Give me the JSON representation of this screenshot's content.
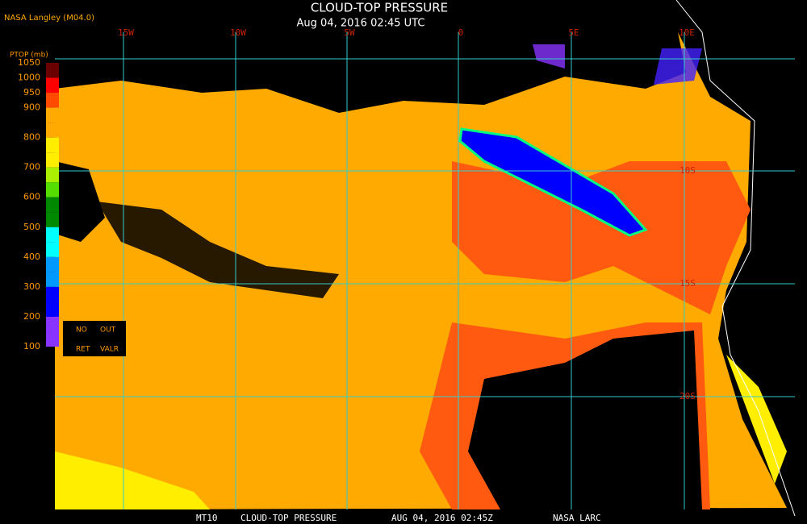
{
  "header": {
    "title": "CLOUD-TOP PRESSURE",
    "subtitle": "Aug 04, 2016 02:45 UTC",
    "source": "NASA Langley (M04.0)"
  },
  "colorbar": {
    "label": "PTOP (mb)",
    "ticks": [
      1050,
      1000,
      950,
      900,
      850,
      800,
      750,
      700,
      650,
      600,
      550,
      500,
      450,
      400,
      350,
      300,
      250,
      200,
      150,
      100
    ],
    "tick_labels_shown": [
      1050,
      1000,
      950,
      900,
      800,
      700,
      600,
      500,
      400,
      300,
      200,
      100
    ],
    "colors": [
      "#6b0000",
      "#ff0000",
      "#ff4a00",
      "#ffaa00",
      "#ffaa00",
      "#ffee00",
      "#ffee00",
      "#aaee00",
      "#55dd00",
      "#008800",
      "#008800",
      "#00ffff",
      "#00ffff",
      "#0099ff",
      "#0099ff",
      "#0000ff",
      "#0000ff",
      "#8833ff",
      "#8833ff"
    ],
    "flags": [
      "NO",
      "OUT",
      "RET",
      "VALR"
    ]
  },
  "grid": {
    "lon_labels": [
      "15W",
      "10W",
      "5W",
      "0",
      "5E",
      "10E"
    ],
    "lat_labels": [
      "10S",
      "15S",
      "20S"
    ]
  },
  "footer": [
    "MT10",
    "CLOUD-TOP PRESSURE",
    "AUG 04, 2016 02:45Z",
    "NASA LARC"
  ]
}
